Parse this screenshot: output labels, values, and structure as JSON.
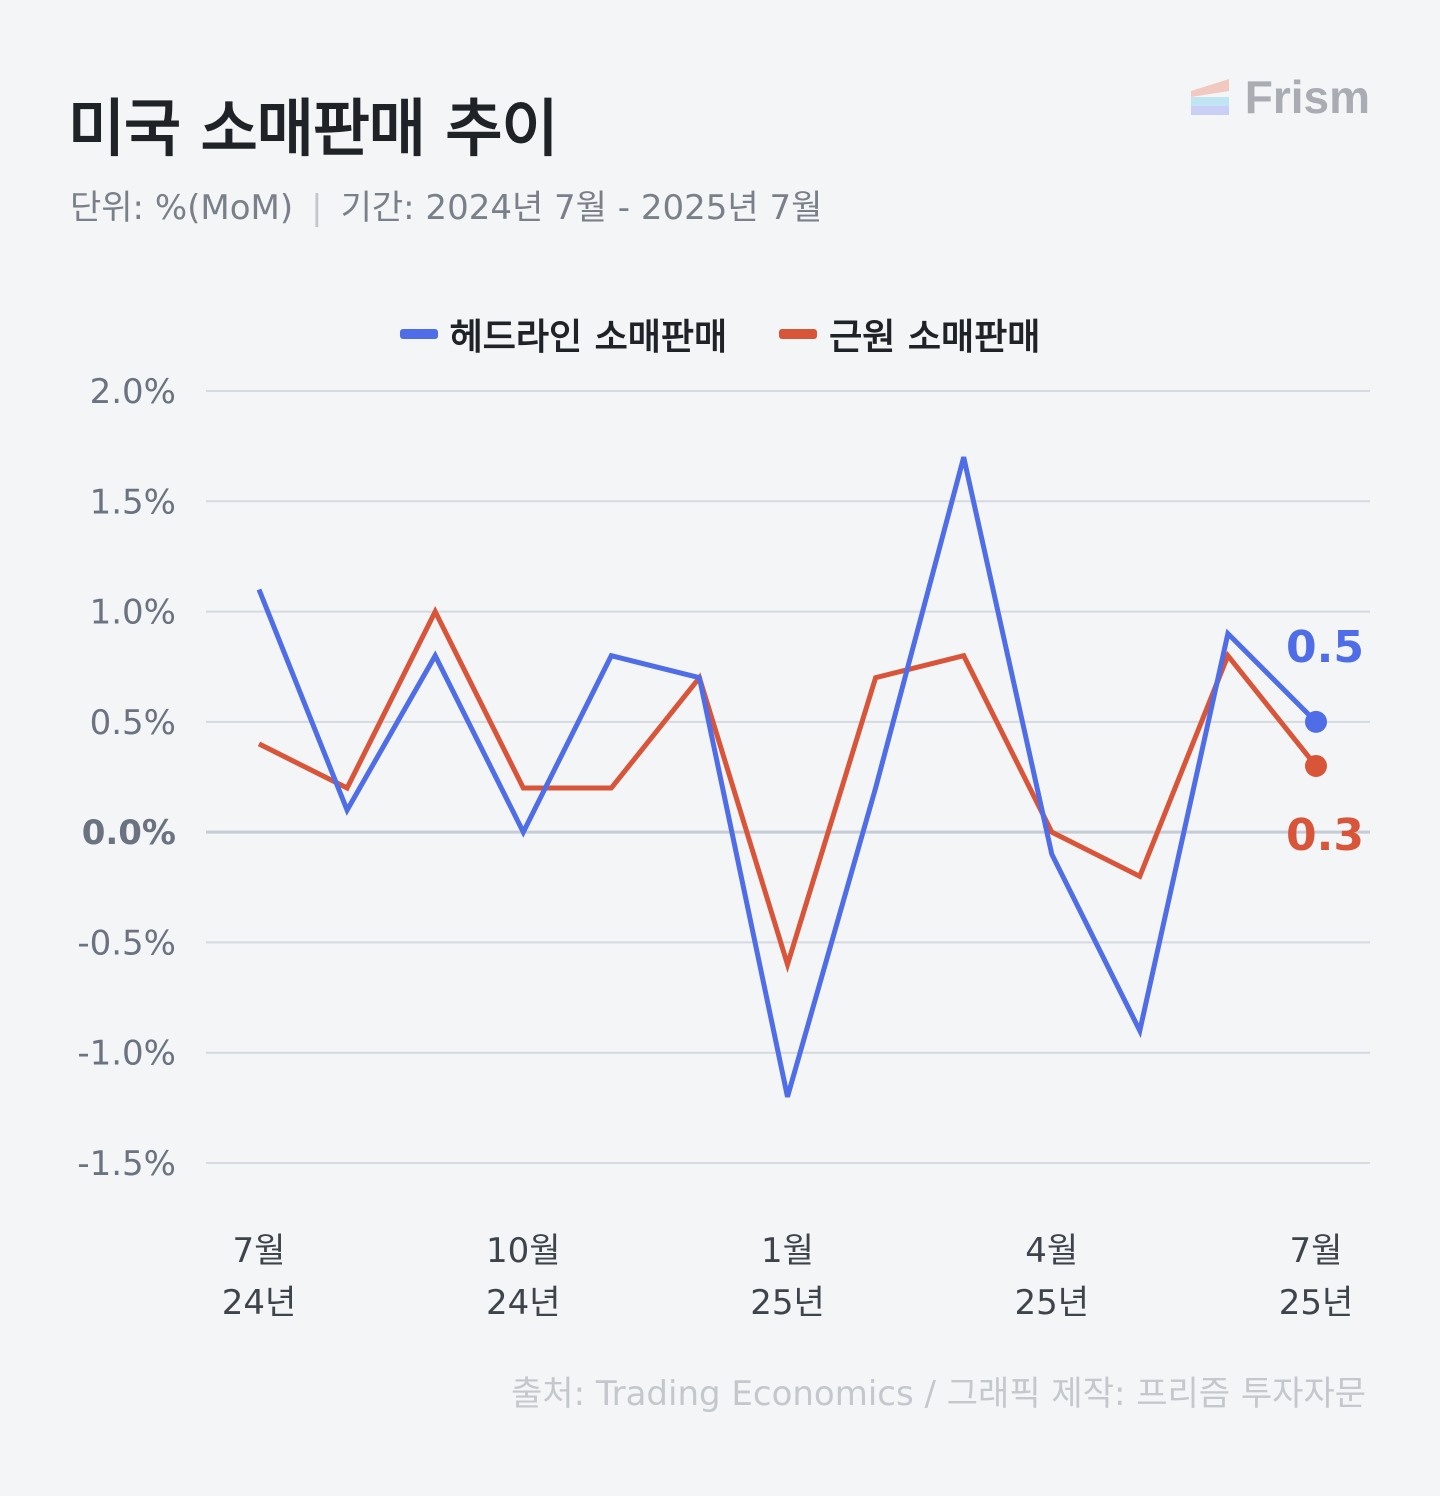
{
  "header": {
    "title": "미국 소매판매 추이",
    "unit_label": "단위: %(MoM)",
    "separator": "|",
    "period_label": "기간: 2024년 7월 - 2025년 7월"
  },
  "logo": {
    "name": "Frism",
    "icon": "frism-logo-icon"
  },
  "source": "출처: Trading Economics  / 그래픽 제작: 프리즘 투자자문",
  "colors": {
    "headline": "#4f6de6",
    "core": "#d9553a",
    "grid": "#d5d9e0",
    "zero_line": "#c6ccd6",
    "tick": "#6b7280"
  },
  "chart_data": {
    "type": "line",
    "x": [
      "2024-07",
      "2024-08",
      "2024-09",
      "2024-10",
      "2024-11",
      "2024-12",
      "2025-01",
      "2025-02",
      "2025-03",
      "2025-04",
      "2025-05",
      "2025-06",
      "2025-07"
    ],
    "xticks": [
      {
        "index": 0,
        "month": "7월",
        "year": "24년"
      },
      {
        "index": 3,
        "month": "10월",
        "year": "24년"
      },
      {
        "index": 6,
        "month": "1월",
        "year": "25년"
      },
      {
        "index": 9,
        "month": "4월",
        "year": "25년"
      },
      {
        "index": 12,
        "month": "7월",
        "year": "25년"
      }
    ],
    "yticks": [
      "2.0%",
      "1.5%",
      "1.0%",
      "0.5%",
      "0.0%",
      "-0.5%",
      "-1.0%",
      "-1.5%"
    ],
    "ylim": [
      -1.5,
      2.0
    ],
    "grid": true,
    "legend_position": "top-center",
    "series": [
      {
        "name": "헤드라인 소매판매",
        "color": "#4f6de6",
        "values": [
          1.1,
          0.1,
          0.8,
          0.0,
          0.8,
          0.7,
          -1.2,
          0.2,
          1.7,
          -0.1,
          -0.9,
          0.9,
          0.5
        ],
        "end_label": "0.5"
      },
      {
        "name": "근원 소매판매",
        "color": "#d9553a",
        "values": [
          0.4,
          0.2,
          1.0,
          0.2,
          0.2,
          0.7,
          -0.6,
          0.7,
          0.8,
          0.0,
          -0.2,
          0.8,
          0.3
        ],
        "end_label": "0.3"
      }
    ]
  }
}
